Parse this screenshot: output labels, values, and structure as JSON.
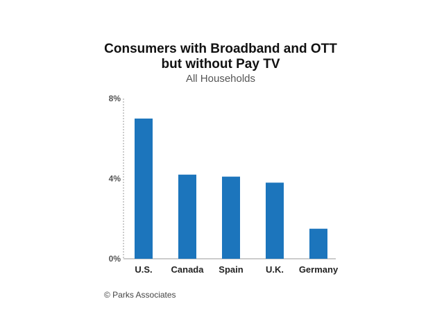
{
  "chart_data": {
    "type": "bar",
    "title_lines": [
      "Consumers with Broadband and OTT",
      "but without Pay TV"
    ],
    "subtitle": "All Households",
    "categories": [
      "U.S.",
      "Canada",
      "Spain",
      "U.K.",
      "Germany"
    ],
    "values": [
      7.0,
      4.2,
      4.1,
      3.8,
      1.5
    ],
    "ylim": [
      0,
      8
    ],
    "yticks": [
      {
        "value": 0,
        "label": "0%"
      },
      {
        "value": 4,
        "label": "4%"
      },
      {
        "value": 8,
        "label": "8%"
      }
    ],
    "xlabel": "",
    "ylabel": "",
    "grid": false,
    "bar_color": "#1c75bc",
    "axis_color": "#999999"
  },
  "source": "© Parks Associates"
}
